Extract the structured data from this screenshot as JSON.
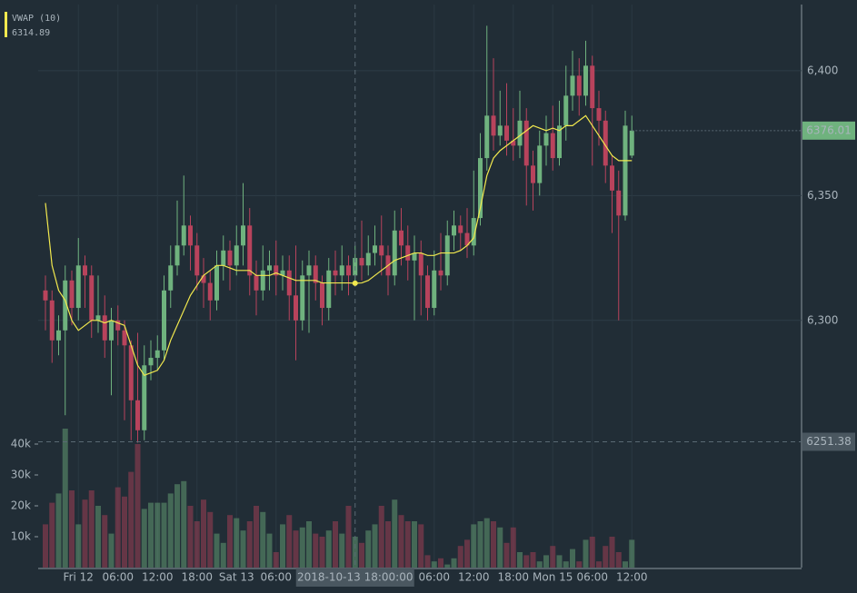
{
  "chart_data": {
    "type": "candlestick",
    "categories": [
      "2018-10-11 19:00:00",
      "2018-10-11 20:00:00",
      "2018-10-11 21:00:00",
      "2018-10-11 22:00:00",
      "2018-10-11 23:00:00",
      "2018-10-12 00:00:00",
      "2018-10-12 01:00:00",
      "2018-10-12 02:00:00",
      "2018-10-12 03:00:00",
      "2018-10-12 04:00:00",
      "2018-10-12 05:00:00",
      "2018-10-12 06:00:00",
      "2018-10-12 07:00:00",
      "2018-10-12 08:00:00",
      "2018-10-12 09:00:00",
      "2018-10-12 10:00:00",
      "2018-10-12 11:00:00",
      "2018-10-12 12:00:00",
      "2018-10-12 13:00:00",
      "2018-10-12 14:00:00",
      "2018-10-12 15:00:00",
      "2018-10-12 16:00:00",
      "2018-10-12 17:00:00",
      "2018-10-12 18:00:00",
      "2018-10-12 19:00:00",
      "2018-10-12 20:00:00",
      "2018-10-12 21:00:00",
      "2018-10-12 22:00:00",
      "2018-10-12 23:00:00",
      "2018-10-13 00:00:00",
      "2018-10-13 01:00:00",
      "2018-10-13 02:00:00",
      "2018-10-13 03:00:00",
      "2018-10-13 04:00:00",
      "2018-10-13 05:00:00",
      "2018-10-13 06:00:00",
      "2018-10-13 07:00:00",
      "2018-10-13 08:00:00",
      "2018-10-13 09:00:00",
      "2018-10-13 10:00:00",
      "2018-10-13 11:00:00",
      "2018-10-13 12:00:00",
      "2018-10-13 13:00:00",
      "2018-10-13 14:00:00",
      "2018-10-13 15:00:00",
      "2018-10-13 16:00:00",
      "2018-10-13 17:00:00",
      "2018-10-13 18:00:00",
      "2018-10-13 19:00:00",
      "2018-10-13 20:00:00",
      "2018-10-13 21:00:00",
      "2018-10-13 22:00:00",
      "2018-10-13 23:00:00",
      "2018-10-14 00:00:00",
      "2018-10-14 01:00:00",
      "2018-10-14 02:00:00",
      "2018-10-14 03:00:00",
      "2018-10-14 04:00:00",
      "2018-10-14 05:00:00",
      "2018-10-14 06:00:00",
      "2018-10-14 07:00:00",
      "2018-10-14 08:00:00",
      "2018-10-14 09:00:00",
      "2018-10-14 10:00:00",
      "2018-10-14 11:00:00",
      "2018-10-14 12:00:00",
      "2018-10-14 13:00:00",
      "2018-10-14 14:00:00",
      "2018-10-14 15:00:00",
      "2018-10-14 16:00:00",
      "2018-10-14 17:00:00",
      "2018-10-14 18:00:00",
      "2018-10-14 19:00:00",
      "2018-10-14 20:00:00",
      "2018-10-14 21:00:00",
      "2018-10-14 22:00:00",
      "2018-10-14 23:00:00",
      "2018-10-15 00:00:00",
      "2018-10-15 01:00:00",
      "2018-10-15 02:00:00",
      "2018-10-15 03:00:00",
      "2018-10-15 04:00:00",
      "2018-10-15 05:00:00",
      "2018-10-15 06:00:00",
      "2018-10-15 07:00:00",
      "2018-10-15 08:00:00",
      "2018-10-15 09:00:00",
      "2018-10-15 10:00:00",
      "2018-10-15 11:00:00",
      "2018-10-15 12:00:00"
    ],
    "open": [
      6312,
      6308,
      6292,
      6296,
      6316,
      6305,
      6322,
      6318,
      6300,
      6302,
      6292,
      6300,
      6296,
      6290,
      6268,
      6256,
      6282,
      6285,
      6288,
      6312,
      6322,
      6330,
      6338,
      6330,
      6318,
      6315,
      6308,
      6322,
      6328,
      6322,
      6330,
      6338,
      6318,
      6312,
      6320,
      6322,
      6318,
      6320,
      6310,
      6300,
      6318,
      6322,
      6315,
      6305,
      6320,
      6318,
      6322,
      6318,
      6325,
      6322,
      6327,
      6330,
      6326,
      6318,
      6336,
      6330,
      6324,
      6327,
      6318,
      6305,
      6320,
      6318,
      6334,
      6338,
      6335,
      6330,
      6341,
      6365,
      6382,
      6374,
      6378,
      6372,
      6370,
      6380,
      6362,
      6355,
      6370,
      6375,
      6365,
      6378,
      6390,
      6398,
      6390,
      6402,
      6385,
      6380,
      6362,
      6352,
      6342,
      6366
    ],
    "high": [
      6318,
      6312,
      6302,
      6322,
      6320,
      6333,
      6326,
      6322,
      6318,
      6310,
      6305,
      6306,
      6300,
      6292,
      6295,
      6290,
      6292,
      6294,
      6318,
      6330,
      6348,
      6358,
      6342,
      6335,
      6325,
      6320,
      6328,
      6334,
      6332,
      6338,
      6355,
      6345,
      6324,
      6330,
      6328,
      6332,
      6326,
      6326,
      6330,
      6324,
      6328,
      6326,
      6318,
      6325,
      6328,
      6330,
      6326,
      6330,
      6340,
      6334,
      6338,
      6342,
      6330,
      6344,
      6345,
      6338,
      6334,
      6332,
      6322,
      6328,
      6335,
      6340,
      6344,
      6342,
      6345,
      6360,
      6375,
      6418,
      6405,
      6392,
      6395,
      6385,
      6392,
      6385,
      6368,
      6376,
      6382,
      6386,
      6388,
      6402,
      6408,
      6405,
      6412,
      6406,
      6392,
      6384,
      6366,
      6360,
      6384,
      6382
    ],
    "low": [
      6296,
      6283,
      6286,
      6262,
      6298,
      6300,
      6305,
      6293,
      6295,
      6285,
      6270,
      6290,
      6260,
      6252,
      6251,
      6252,
      6276,
      6280,
      6284,
      6305,
      6318,
      6326,
      6320,
      6312,
      6305,
      6300,
      6304,
      6316,
      6312,
      6318,
      6322,
      6310,
      6302,
      6308,
      6312,
      6310,
      6312,
      6300,
      6284,
      6296,
      6295,
      6308,
      6298,
      6300,
      6310,
      6312,
      6310,
      6314,
      6316,
      6318,
      6322,
      6318,
      6310,
      6314,
      6322,
      6316,
      6300,
      6302,
      6300,
      6302,
      6312,
      6314,
      6328,
      6328,
      6325,
      6326,
      6338,
      6360,
      6368,
      6370,
      6366,
      6364,
      6365,
      6346,
      6344,
      6350,
      6362,
      6360,
      6362,
      6372,
      6384,
      6382,
      6386,
      6362,
      6370,
      6355,
      6335,
      6300,
      6340,
      6365
    ],
    "close": [
      6308,
      6292,
      6296,
      6316,
      6305,
      6322,
      6318,
      6300,
      6302,
      6292,
      6300,
      6296,
      6290,
      6268,
      6256,
      6282,
      6285,
      6288,
      6312,
      6322,
      6330,
      6338,
      6330,
      6318,
      6315,
      6308,
      6322,
      6328,
      6322,
      6330,
      6338,
      6318,
      6312,
      6320,
      6322,
      6318,
      6320,
      6310,
      6300,
      6318,
      6322,
      6315,
      6305,
      6320,
      6318,
      6322,
      6318,
      6325,
      6322,
      6327,
      6330,
      6326,
      6318,
      6336,
      6330,
      6324,
      6327,
      6318,
      6305,
      6320,
      6318,
      6334,
      6338,
      6335,
      6330,
      6341,
      6365,
      6382,
      6374,
      6378,
      6372,
      6370,
      6380,
      6362,
      6355,
      6370,
      6375,
      6365,
      6378,
      6390,
      6398,
      6390,
      6402,
      6385,
      6380,
      6362,
      6352,
      6342,
      6378,
      6376.01
    ],
    "volume": [
      14000,
      21000,
      24000,
      45000,
      25000,
      14000,
      22000,
      25000,
      20000,
      17000,
      11000,
      26000,
      23000,
      31000,
      40000,
      19000,
      21000,
      21000,
      21000,
      24000,
      27000,
      28000,
      20000,
      15000,
      22000,
      18000,
      11000,
      8000,
      17000,
      16000,
      12000,
      15000,
      20000,
      18000,
      11000,
      5000,
      14000,
      17000,
      12000,
      13000,
      15000,
      11000,
      10000,
      12000,
      15000,
      11000,
      20000,
      10000,
      8000,
      12000,
      14000,
      20000,
      15000,
      22000,
      17000,
      15000,
      15000,
      14000,
      4000,
      2000,
      3000,
      1000,
      3000,
      7000,
      9000,
      14000,
      15000,
      16000,
      15000,
      13000,
      8000,
      13000,
      5000,
      4000,
      5000,
      2000,
      4000,
      7000,
      4000,
      2000,
      6000,
      2000,
      9000,
      10000,
      2000,
      7000,
      10000,
      5000,
      2000,
      9000
    ],
    "up_color": "#6fb27e",
    "down_color": "#b8435c",
    "vwap": {
      "name": "VWAP (10)",
      "color": "#f2e94e",
      "values": [
        6347,
        6322,
        6312,
        6308,
        6300,
        6296,
        6298,
        6300,
        6300,
        6299,
        6300,
        6299,
        6298,
        6290,
        6282,
        6278,
        6279,
        6280,
        6284,
        6292,
        6298,
        6304,
        6310,
        6314,
        6318,
        6320,
        6322,
        6322,
        6321,
        6320,
        6320,
        6320,
        6318,
        6318,
        6318,
        6319,
        6318,
        6317,
        6316,
        6316,
        6316,
        6316,
        6315,
        6315,
        6315,
        6315,
        6315,
        6314.89,
        6315,
        6316,
        6318,
        6320,
        6322,
        6324,
        6325,
        6326,
        6327,
        6327,
        6326,
        6326,
        6327,
        6327,
        6327,
        6328,
        6330,
        6333,
        6345,
        6358,
        6365,
        6368,
        6370,
        6372,
        6374,
        6376,
        6378,
        6377,
        6376,
        6377,
        6376,
        6378,
        6378,
        6380,
        6382,
        6378,
        6374,
        6370,
        6366,
        6364,
        6364,
        6364
      ]
    },
    "ylim": [
      6201,
      6426.5
    ],
    "yticks": [
      {
        "value": 6300,
        "label": "6,300"
      },
      {
        "value": 6350,
        "label": "6,350"
      },
      {
        "value": 6400,
        "label": "6,400"
      }
    ],
    "volume_lim": [
      0,
      50000
    ],
    "volume_ticks": [
      {
        "value": 10000,
        "label": "10k"
      },
      {
        "value": 20000,
        "label": "20k"
      },
      {
        "value": 30000,
        "label": "30k"
      },
      {
        "value": 40000,
        "label": "40k"
      }
    ],
    "xticks": [
      {
        "value": "2018-10-12 00:00:00",
        "label": "Fri 12"
      },
      {
        "value": "2018-10-12 06:00:00",
        "label": "06:00"
      },
      {
        "value": "2018-10-12 12:00:00",
        "label": "12:00"
      },
      {
        "value": "2018-10-12 18:00:00",
        "label": "18:00"
      },
      {
        "value": "2018-10-13 00:00:00",
        "label": "Sat 13"
      },
      {
        "value": "2018-10-13 06:00:00",
        "label": "06:00"
      },
      {
        "value": "2018-10-14 06:00:00",
        "label": "06:00"
      },
      {
        "value": "2018-10-14 12:00:00",
        "label": "12:00"
      },
      {
        "value": "2018-10-14 18:00:00",
        "label": "18:00"
      },
      {
        "value": "2018-10-15 00:00:00",
        "label": "Mon 15"
      },
      {
        "value": "2018-10-15 06:00:00",
        "label": "06:00"
      },
      {
        "value": "2018-10-15 12:00:00",
        "label": "12:00"
      }
    ],
    "crosshair": {
      "x": "2018-10-13 18:00:00",
      "price": 6251.38
    },
    "grid": true
  }
}
